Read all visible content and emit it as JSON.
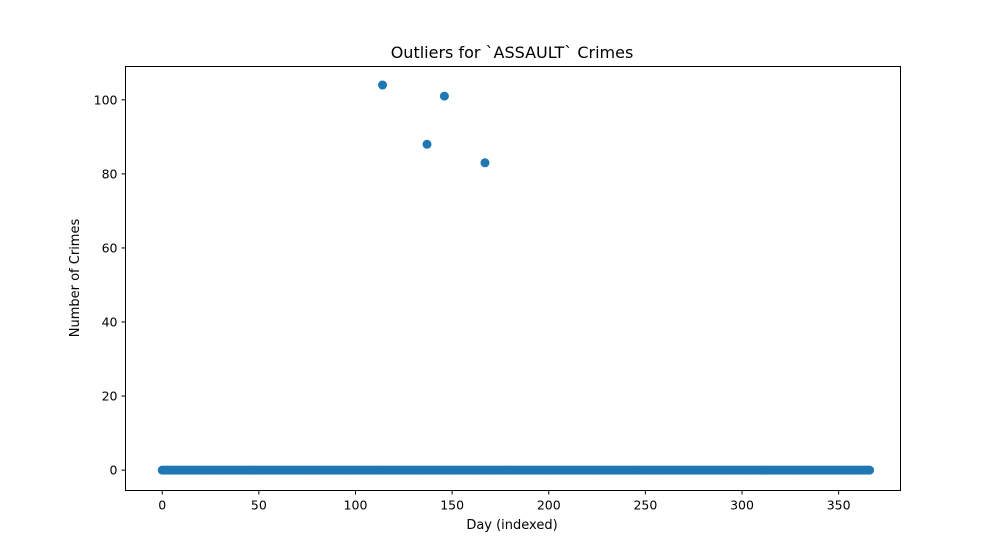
{
  "chart_data": {
    "type": "scatter",
    "title": "Outliers for `ASSAULT` Crimes",
    "xlabel": "Day (indexed)",
    "ylabel": "Number of Crimes",
    "xlim": [
      -19,
      382
    ],
    "ylim": [
      -5.5,
      109
    ],
    "xticks": [
      0,
      50,
      100,
      150,
      200,
      250,
      300,
      350
    ],
    "yticks": [
      0,
      20,
      40,
      60,
      80,
      100
    ],
    "grid": false,
    "legend": "none",
    "marker_color": "#1f77b4",
    "baseline": {
      "x_from": 0,
      "x_to": 366,
      "x_step": 1,
      "y": 0
    },
    "outliers": [
      {
        "x": 114,
        "y": 104
      },
      {
        "x": 137,
        "y": 88
      },
      {
        "x": 146,
        "y": 101
      },
      {
        "x": 167,
        "y": 83
      }
    ]
  }
}
